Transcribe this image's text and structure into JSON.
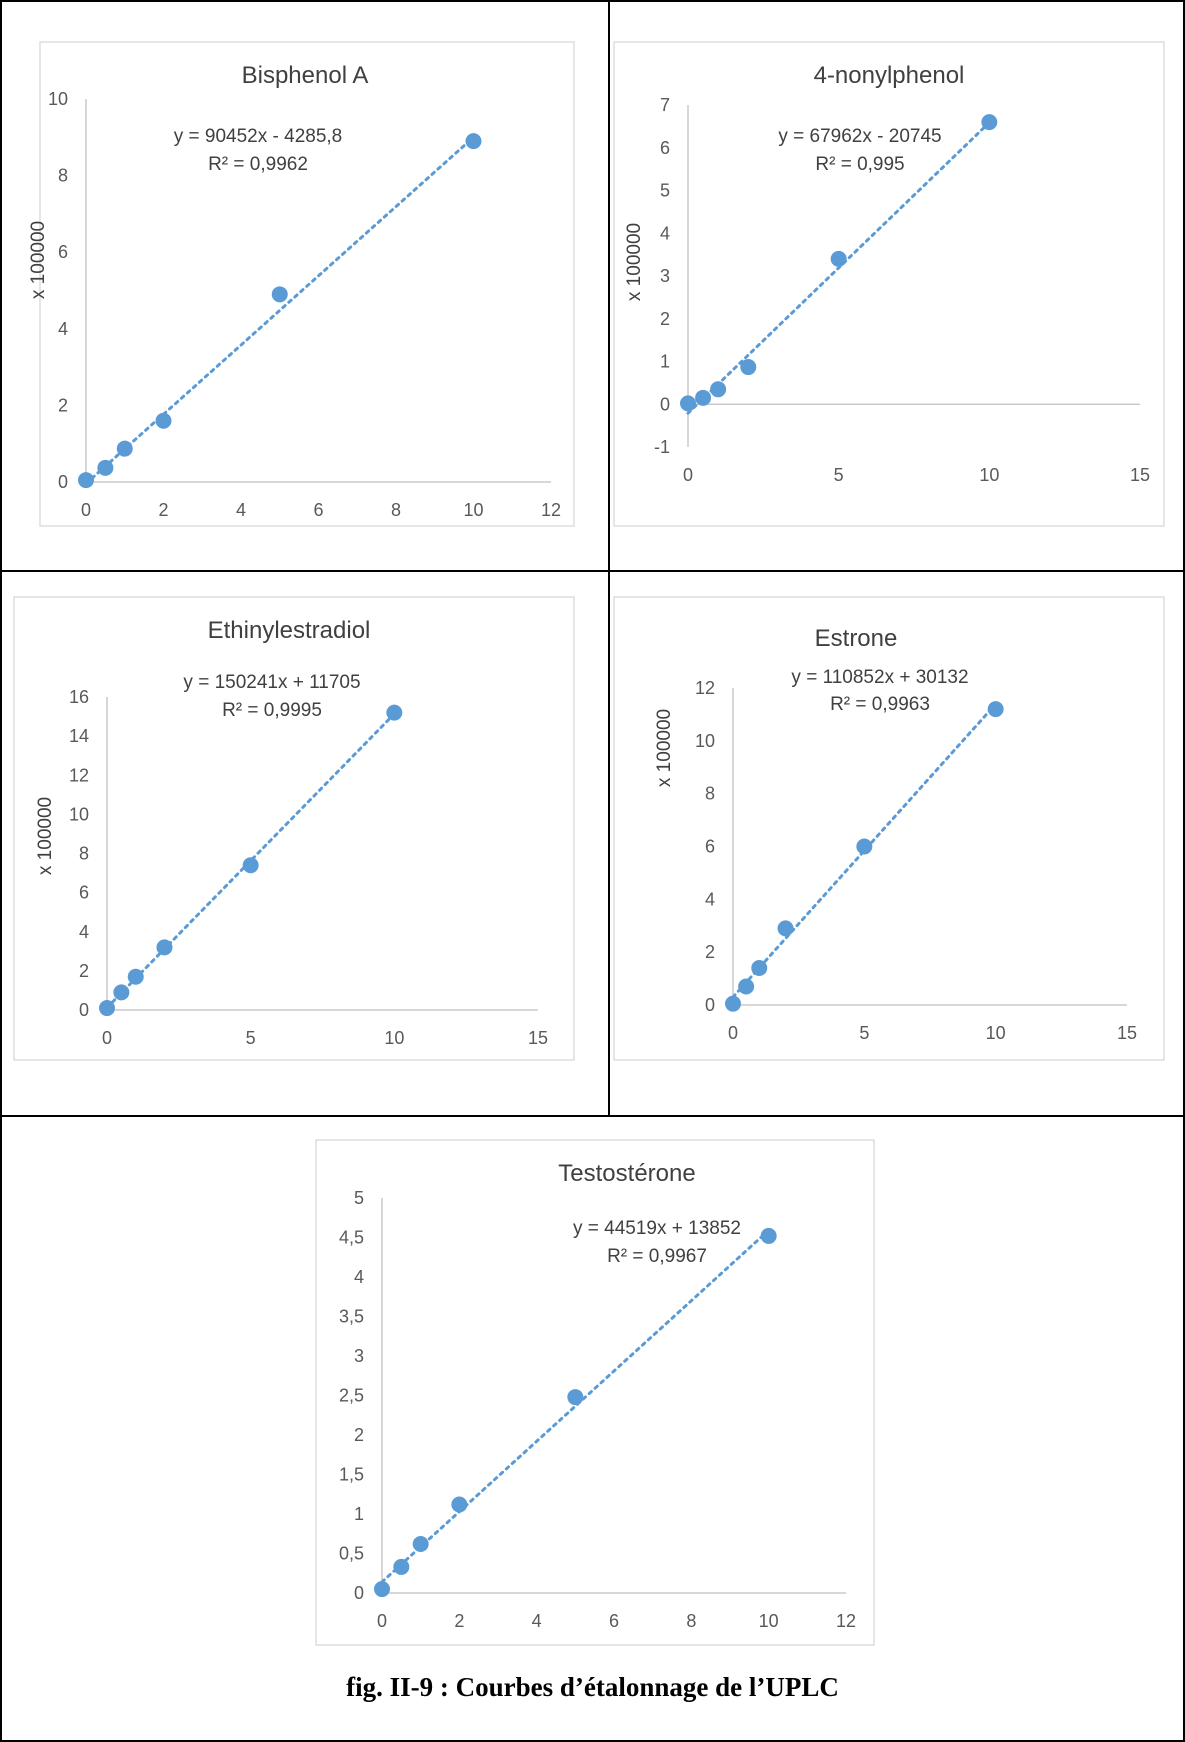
{
  "caption": "fig. II-9 : Courbes d’étalonnage de l’UPLC",
  "colors": {
    "series": "#5b9bd5",
    "axis": "#bfbfbf",
    "text": "#404040",
    "frame": "#d9d9d9"
  },
  "chart_data": [
    {
      "id": "bpa",
      "type": "scatter",
      "title": "Bisphenol A",
      "ylabel": "x 100000",
      "equation": "y = 90452x - 4285,8",
      "r2": "R² = 0,9962",
      "trendline": "linear-dotted",
      "x": [
        0,
        0.5,
        1,
        2,
        5,
        10
      ],
      "y": [
        0.05,
        0.37,
        0.87,
        1.6,
        4.9,
        8.9
      ],
      "xlim": [
        0,
        12
      ],
      "ylim": [
        0,
        10
      ],
      "xticks": [
        0,
        2,
        4,
        6,
        8,
        10,
        12
      ],
      "yticks": [
        0,
        2,
        4,
        6,
        8,
        10
      ],
      "xtick_labels": [
        "0",
        "2",
        "4",
        "6",
        "8",
        "10",
        "12"
      ],
      "ytick_labels": [
        "0",
        "2",
        "4",
        "6",
        "8",
        "10"
      ],
      "trend": [
        -0.04,
        9.0
      ]
    },
    {
      "id": "np",
      "type": "scatter",
      "title": "4-nonylphenol",
      "ylabel": "x 100000",
      "equation": "y = 67962x - 20745",
      "r2": "R² = 0,995",
      "trendline": "linear-dotted",
      "x": [
        0,
        0.5,
        1,
        2,
        5,
        10
      ],
      "y": [
        0.02,
        0.15,
        0.35,
        0.87,
        3.4,
        6.6
      ],
      "xlim": [
        0,
        15
      ],
      "ylim": [
        -1,
        7
      ],
      "xticks": [
        0,
        5,
        10,
        15
      ],
      "yticks": [
        -1,
        0,
        1,
        2,
        3,
        4,
        5,
        6,
        7
      ],
      "xtick_labels": [
        "0",
        "5",
        "10",
        "15"
      ],
      "ytick_labels": [
        "-1",
        "0",
        "1",
        "2",
        "3",
        "4",
        "5",
        "6",
        "7"
      ],
      "trend": [
        -0.21,
        6.59
      ]
    },
    {
      "id": "ee2",
      "type": "scatter",
      "title": "Ethinylestradiol",
      "ylabel": "x 100000",
      "equation": "y = 150241x + 11705",
      "r2": "R² = 0,9995",
      "trendline": "linear-dotted",
      "x": [
        0,
        0.5,
        1,
        2,
        5,
        10
      ],
      "y": [
        0.1,
        0.9,
        1.7,
        3.2,
        7.4,
        15.2
      ],
      "xlim": [
        0,
        15
      ],
      "ylim": [
        0,
        16
      ],
      "xticks": [
        0,
        5,
        10,
        15
      ],
      "yticks": [
        0,
        2,
        4,
        6,
        8,
        10,
        12,
        14,
        16
      ],
      "xtick_labels": [
        "0",
        "5",
        "10",
        "15"
      ],
      "ytick_labels": [
        "0",
        "2",
        "4",
        "6",
        "8",
        "10",
        "12",
        "14",
        "16"
      ],
      "trend": [
        0.12,
        15.14
      ]
    },
    {
      "id": "e1",
      "type": "scatter",
      "title": "Estrone",
      "ylabel": "x 100000",
      "equation": "y = 110852x + 30132",
      "r2": "R² = 0,9963",
      "trendline": "linear-dotted",
      "x": [
        0,
        0.5,
        1,
        2,
        5,
        10
      ],
      "y": [
        0.05,
        0.7,
        1.4,
        2.9,
        6.0,
        11.2
      ],
      "xlim": [
        0,
        15
      ],
      "ylim": [
        0,
        12
      ],
      "xticks": [
        0,
        5,
        10,
        15
      ],
      "yticks": [
        0,
        2,
        4,
        6,
        8,
        10,
        12
      ],
      "xtick_labels": [
        "0",
        "5",
        "10",
        "15"
      ],
      "ytick_labels": [
        "0",
        "2",
        "4",
        "6",
        "8",
        "10",
        "12"
      ],
      "trend": [
        0.3,
        11.39
      ]
    },
    {
      "id": "t",
      "type": "scatter",
      "title": "Testostérone",
      "ylabel": "",
      "equation": "y = 44519x + 13852",
      "r2": "R² = 0,9967",
      "trendline": "linear-dotted",
      "x": [
        0,
        0.5,
        1,
        2,
        5,
        10
      ],
      "y": [
        0.05,
        0.33,
        0.62,
        1.12,
        2.48,
        4.52
      ],
      "xlim": [
        0,
        12
      ],
      "ylim": [
        0,
        5
      ],
      "xticks": [
        0,
        2,
        4,
        6,
        8,
        10,
        12
      ],
      "yticks": [
        0,
        0.5,
        1,
        1.5,
        2,
        2.5,
        3,
        3.5,
        4,
        4.5,
        5
      ],
      "xtick_labels": [
        "0",
        "2",
        "4",
        "6",
        "8",
        "10",
        "12"
      ],
      "ytick_labels": [
        "0",
        "0,5",
        "1",
        "1,5",
        "2",
        "2,5",
        "3",
        "3,5",
        "4",
        "4,5",
        "5"
      ],
      "trend": [
        0.14,
        4.59
      ]
    }
  ]
}
